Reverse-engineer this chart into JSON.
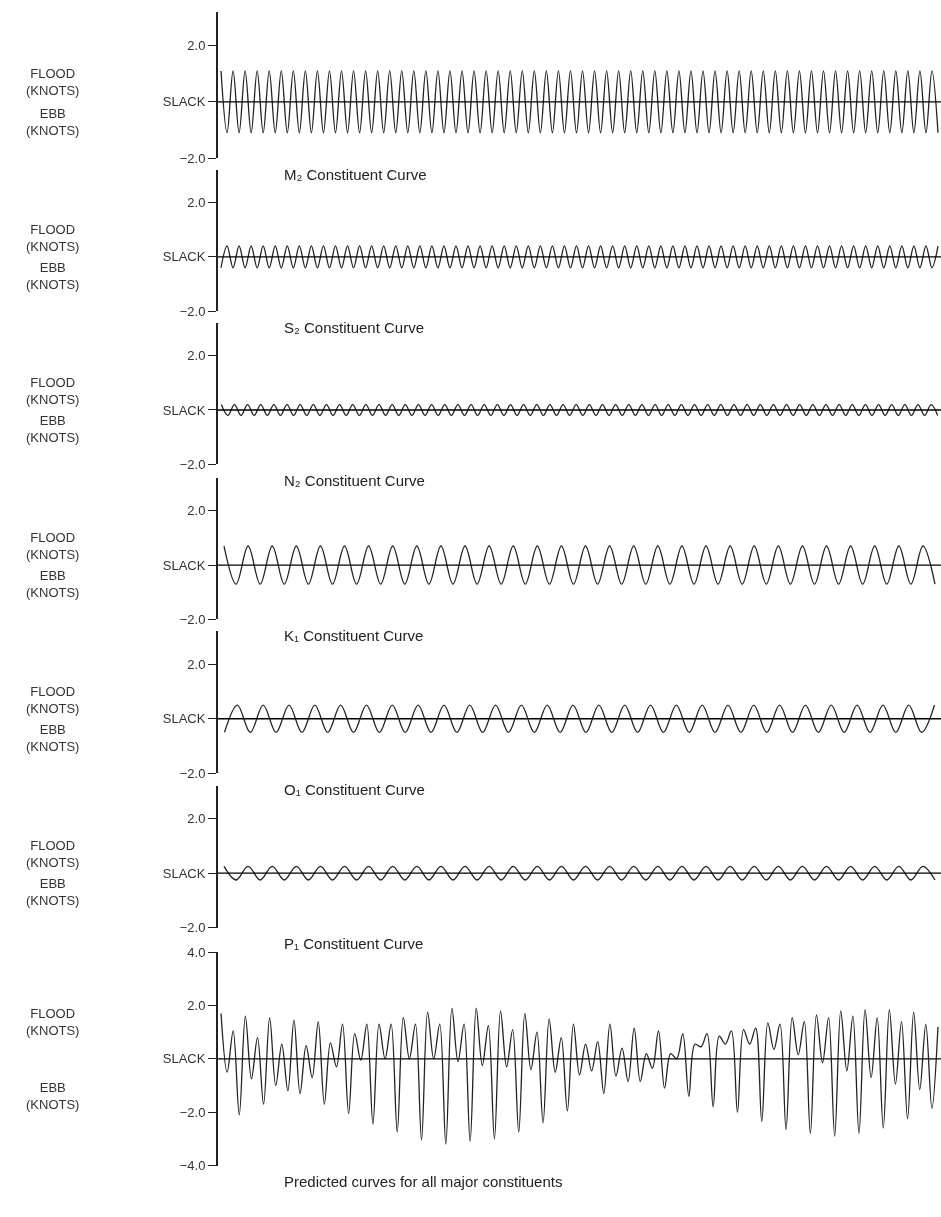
{
  "chart_data": [
    {
      "type": "line",
      "title": "M₂ Constituent Curve",
      "annotations": [
        "FLOOD (KNOTS)",
        "EBB (KNOTS)"
      ],
      "ylim": [
        -2.0,
        3.2
      ],
      "yticks": [
        {
          "value": 2.0,
          "label": "2.0"
        },
        {
          "value": 0,
          "label": "SLACK"
        },
        {
          "value": -2.0,
          "label": "−2.0"
        }
      ],
      "ref_lines": [
        {
          "axis": "y",
          "value": 0,
          "color": "#000000"
        }
      ],
      "categories": [
        null,
        null,
        null,
        null,
        null,
        null,
        null,
        null,
        null,
        null,
        null,
        null,
        null,
        null,
        null,
        null,
        null,
        null,
        null,
        null,
        null,
        null,
        null,
        null,
        null,
        null,
        null,
        null,
        null,
        null,
        null,
        null,
        null,
        null,
        null,
        null,
        null,
        null,
        null,
        null,
        null,
        null,
        null,
        null,
        null,
        null,
        null,
        null,
        null,
        null,
        null,
        null,
        null,
        null,
        null,
        null,
        null,
        null,
        null,
        null,
        null,
        null,
        null,
        null,
        null,
        null,
        null,
        null,
        null,
        null,
        null,
        null,
        null,
        null,
        null,
        null,
        null,
        null,
        null,
        null,
        null,
        null,
        null,
        null,
        null,
        null,
        null,
        null,
        null,
        null,
        null,
        null,
        null,
        null,
        null,
        null,
        null,
        null,
        null,
        null,
        null,
        null,
        null,
        null,
        null,
        null,
        null,
        null,
        null,
        null,
        null,
        null,
        null,
        null,
        null,
        null,
        null,
        null,
        null,
        null
      ],
      "series": [
        {
          "color": "#222222",
          "values": [
            1.1,
            -1.1,
            1.1,
            -1.1,
            1.1,
            -1.1,
            1.1,
            -1.1,
            1.1,
            -1.1,
            1.1,
            -1.1,
            1.1,
            -1.1,
            1.1,
            -1.1,
            1.1,
            -1.1,
            1.1,
            -1.1,
            1.1,
            -1.1,
            1.1,
            -1.1,
            1.1,
            -1.1,
            1.1,
            -1.1,
            1.1,
            -1.1,
            1.1,
            -1.1,
            1.1,
            -1.1,
            1.1,
            -1.1,
            1.1,
            -1.1,
            1.1,
            -1.1,
            1.1,
            -1.1,
            1.1,
            -1.1,
            1.1,
            -1.1,
            1.1,
            -1.1,
            1.1,
            -1.1,
            1.1,
            -1.1,
            1.1,
            -1.1,
            1.1,
            -1.1,
            1.1,
            -1.1,
            1.1,
            -1.1,
            1.1,
            -1.1,
            1.1,
            -1.1,
            1.1,
            -1.1,
            1.1,
            -1.1,
            1.1,
            -1.1,
            1.1,
            -1.1,
            1.1,
            -1.1,
            1.1,
            -1.1,
            1.1,
            -1.1,
            1.1,
            -1.1,
            1.1,
            -1.1,
            1.1,
            -1.1,
            1.1,
            -1.1,
            1.1,
            -1.1,
            1.1,
            -1.1,
            1.1,
            -1.1,
            1.1,
            -1.1,
            1.1,
            -1.1,
            1.1,
            -1.1,
            1.1,
            -1.1,
            1.1,
            -1.1,
            1.1,
            -1.1,
            1.1,
            -1.1,
            1.1,
            -1.1,
            1.1,
            -1.1,
            1.1,
            -1.1,
            1.1,
            -1.1,
            1.1,
            -1.1,
            1.1,
            -1.1,
            1.1,
            -1.1
          ]
        }
      ]
    },
    {
      "type": "line",
      "title": "S₂ Constituent Curve",
      "annotations": [
        "FLOOD (KNOTS)",
        "EBB (KNOTS)"
      ],
      "ylim": [
        -2.0,
        3.2
      ],
      "yticks": [
        {
          "value": 2.0,
          "label": "2.0"
        },
        {
          "value": 0,
          "label": "SLACK"
        },
        {
          "value": -2.0,
          "label": "−2.0"
        }
      ],
      "ref_lines": [
        {
          "axis": "y",
          "value": 0,
          "color": "#000000"
        }
      ],
      "categories": [
        null,
        null,
        null,
        null,
        null,
        null,
        null,
        null,
        null,
        null,
        null,
        null,
        null,
        null,
        null,
        null,
        null,
        null,
        null,
        null,
        null,
        null,
        null,
        null,
        null,
        null,
        null,
        null,
        null,
        null,
        null,
        null,
        null,
        null,
        null,
        null,
        null,
        null,
        null,
        null,
        null,
        null,
        null,
        null,
        null,
        null,
        null,
        null,
        null,
        null,
        null,
        null,
        null,
        null,
        null,
        null,
        null,
        null,
        null,
        null,
        null,
        null,
        null,
        null,
        null,
        null,
        null,
        null,
        null,
        null,
        null,
        null,
        null,
        null,
        null,
        null,
        null,
        null,
        null,
        null,
        null,
        null,
        null,
        null,
        null,
        null,
        null,
        null,
        null,
        null,
        null,
        null,
        null,
        null,
        null,
        null,
        null,
        null,
        null,
        null,
        null,
        null,
        null,
        null,
        null,
        null,
        null,
        null,
        null,
        null,
        null,
        null,
        null,
        null,
        null,
        null,
        null,
        null,
        null,
        null
      ],
      "series": [
        {
          "color": "#222222",
          "values": [
            -0.4,
            0.4,
            -0.4,
            0.4,
            -0.4,
            0.4,
            -0.4,
            0.4,
            -0.4,
            0.4,
            -0.4,
            0.4,
            -0.4,
            0.4,
            -0.4,
            0.4,
            -0.4,
            0.4,
            -0.4,
            0.4,
            -0.4,
            0.4,
            -0.4,
            0.4,
            -0.4,
            0.4,
            -0.4,
            0.4,
            -0.4,
            0.4,
            -0.4,
            0.4,
            -0.4,
            0.4,
            -0.4,
            0.4,
            -0.4,
            0.4,
            -0.4,
            0.4,
            -0.4,
            0.4,
            -0.4,
            0.4,
            -0.4,
            0.4,
            -0.4,
            0.4,
            -0.4,
            0.4,
            -0.4,
            0.4,
            -0.4,
            0.4,
            -0.4,
            0.4,
            -0.4,
            0.4,
            -0.4,
            0.4,
            -0.4,
            0.4,
            -0.4,
            0.4,
            -0.4,
            0.4,
            -0.4,
            0.4,
            -0.4,
            0.4,
            -0.4,
            0.4,
            -0.4,
            0.4,
            -0.4,
            0.4,
            -0.4,
            0.4,
            -0.4,
            0.4,
            -0.4,
            0.4,
            -0.4,
            0.4,
            -0.4,
            0.4,
            -0.4,
            0.4,
            -0.4,
            0.4,
            -0.4,
            0.4,
            -0.4,
            0.4,
            -0.4,
            0.4,
            -0.4,
            0.4,
            -0.4,
            0.4,
            -0.4,
            0.4,
            -0.4,
            0.4,
            -0.4,
            0.4,
            -0.4,
            0.4,
            -0.4,
            0.4,
            -0.4,
            0.4,
            -0.4,
            0.4,
            -0.4,
            0.4,
            -0.4,
            0.4,
            -0.4,
            0.4
          ]
        }
      ]
    },
    {
      "type": "line",
      "title": "N₂ Constituent Curve",
      "annotations": [
        "FLOOD (KNOTS)",
        "EBB (KNOTS)"
      ],
      "ylim": [
        -2.0,
        3.2
      ],
      "yticks": [
        {
          "value": 2.0,
          "label": "2.0"
        },
        {
          "value": 0,
          "label": "SLACK"
        },
        {
          "value": -2.0,
          "label": "−2.0"
        }
      ],
      "ref_lines": [
        {
          "axis": "y",
          "value": 0,
          "color": "#000000"
        }
      ],
      "categories": [
        null,
        null,
        null,
        null,
        null,
        null,
        null,
        null,
        null,
        null,
        null,
        null,
        null,
        null,
        null,
        null,
        null,
        null,
        null,
        null,
        null,
        null,
        null,
        null,
        null,
        null,
        null,
        null,
        null,
        null,
        null,
        null,
        null,
        null,
        null,
        null,
        null,
        null,
        null,
        null,
        null,
        null,
        null,
        null,
        null,
        null,
        null,
        null,
        null,
        null,
        null,
        null,
        null,
        null,
        null,
        null,
        null,
        null,
        null,
        null,
        null,
        null,
        null,
        null,
        null,
        null,
        null,
        null,
        null,
        null,
        null,
        null,
        null,
        null,
        null,
        null,
        null,
        null,
        null,
        null,
        null,
        null,
        null,
        null,
        null,
        null,
        null,
        null,
        null,
        null,
        null,
        null,
        null,
        null,
        null,
        null,
        null,
        null,
        null,
        null,
        null,
        null,
        null,
        null,
        null,
        null,
        null,
        null,
        null,
        null
      ],
      "series": [
        {
          "color": "#222222",
          "values": [
            0.2,
            -0.2,
            0.2,
            -0.2,
            0.2,
            -0.2,
            0.2,
            -0.2,
            0.2,
            -0.2,
            0.2,
            -0.2,
            0.2,
            -0.2,
            0.2,
            -0.2,
            0.2,
            -0.2,
            0.2,
            -0.2,
            0.2,
            -0.2,
            0.2,
            -0.2,
            0.2,
            -0.2,
            0.2,
            -0.2,
            0.2,
            -0.2,
            0.2,
            -0.2,
            0.2,
            -0.2,
            0.2,
            -0.2,
            0.2,
            -0.2,
            0.2,
            -0.2,
            0.2,
            -0.2,
            0.2,
            -0.2,
            0.2,
            -0.2,
            0.2,
            -0.2,
            0.2,
            -0.2,
            0.2,
            -0.2,
            0.2,
            -0.2,
            0.2,
            -0.2,
            0.2,
            -0.2,
            0.2,
            -0.2,
            0.2,
            -0.2,
            0.2,
            -0.2,
            0.2,
            -0.2,
            0.2,
            -0.2,
            0.2,
            -0.2,
            0.2,
            -0.2,
            0.2,
            -0.2,
            0.2,
            -0.2,
            0.2,
            -0.2,
            0.2,
            -0.2,
            0.2,
            -0.2,
            0.2,
            -0.2,
            0.2,
            -0.2,
            0.2,
            -0.2,
            0.2,
            -0.2,
            0.2,
            -0.2,
            0.2,
            -0.2,
            0.2,
            -0.2,
            0.2,
            -0.2,
            0.2,
            -0.2,
            0.2,
            -0.2,
            0.2,
            -0.2,
            0.2,
            -0.2,
            0.2,
            -0.2,
            0.2,
            -0.2
          ]
        }
      ]
    },
    {
      "type": "line",
      "title": "K₁ Constituent Curve",
      "annotations": [
        "FLOOD (KNOTS)",
        "EBB (KNOTS)"
      ],
      "ylim": [
        -2.0,
        3.2
      ],
      "yticks": [
        {
          "value": 2.0,
          "label": "2.0"
        },
        {
          "value": 0,
          "label": "SLACK"
        },
        {
          "value": -2.0,
          "label": "−2.0"
        }
      ],
      "ref_lines": [
        {
          "axis": "y",
          "value": 0,
          "color": "#000000"
        }
      ],
      "categories": [
        null,
        null,
        null,
        null,
        null,
        null,
        null,
        null,
        null,
        null,
        null,
        null,
        null,
        null,
        null,
        null,
        null,
        null,
        null,
        null,
        null,
        null,
        null,
        null,
        null,
        null,
        null,
        null,
        null,
        null,
        null,
        null,
        null,
        null,
        null,
        null,
        null,
        null,
        null,
        null,
        null,
        null,
        null,
        null,
        null,
        null,
        null,
        null,
        null,
        null,
        null,
        null,
        null,
        null,
        null,
        null,
        null,
        null,
        null,
        null
      ],
      "series": [
        {
          "color": "#222222",
          "values": [
            0.7,
            -0.7,
            0.7,
            -0.7,
            0.7,
            -0.7,
            0.7,
            -0.7,
            0.7,
            -0.7,
            0.7,
            -0.7,
            0.7,
            -0.7,
            0.7,
            -0.7,
            0.7,
            -0.7,
            0.7,
            -0.7,
            0.7,
            -0.7,
            0.7,
            -0.7,
            0.7,
            -0.7,
            0.7,
            -0.7,
            0.7,
            -0.7,
            0.7,
            -0.7,
            0.7,
            -0.7,
            0.7,
            -0.7,
            0.7,
            -0.7,
            0.7,
            -0.7,
            0.7,
            -0.7,
            0.7,
            -0.7,
            0.7,
            -0.7,
            0.7,
            -0.7,
            0.7,
            -0.7,
            0.7,
            -0.7,
            0.7,
            -0.7,
            0.7,
            -0.7,
            0.7,
            -0.7,
            0.7,
            -0.7
          ]
        }
      ]
    },
    {
      "type": "line",
      "title": "O₁ Constituent Curve",
      "annotations": [
        "FLOOD (KNOTS)",
        "EBB (KNOTS)"
      ],
      "ylim": [
        -2.0,
        3.2
      ],
      "yticks": [
        {
          "value": 2.0,
          "label": "2.0"
        },
        {
          "value": 0,
          "label": "SLACK"
        },
        {
          "value": -2.0,
          "label": "−2.0"
        }
      ],
      "ref_lines": [
        {
          "axis": "y",
          "value": 0,
          "color": "#000000"
        }
      ],
      "categories": [
        null,
        null,
        null,
        null,
        null,
        null,
        null,
        null,
        null,
        null,
        null,
        null,
        null,
        null,
        null,
        null,
        null,
        null,
        null,
        null,
        null,
        null,
        null,
        null,
        null,
        null,
        null,
        null,
        null,
        null,
        null,
        null,
        null,
        null,
        null,
        null,
        null,
        null,
        null,
        null,
        null,
        null,
        null,
        null,
        null,
        null,
        null,
        null,
        null,
        null,
        null,
        null,
        null,
        null,
        null,
        null
      ],
      "series": [
        {
          "color": "#222222",
          "values": [
            -0.5,
            0.5,
            -0.5,
            0.5,
            -0.5,
            0.5,
            -0.5,
            0.5,
            -0.5,
            0.5,
            -0.5,
            0.5,
            -0.5,
            0.5,
            -0.5,
            0.5,
            -0.5,
            0.5,
            -0.5,
            0.5,
            -0.5,
            0.5,
            -0.5,
            0.5,
            -0.5,
            0.5,
            -0.5,
            0.5,
            -0.5,
            0.5,
            -0.5,
            0.5,
            -0.5,
            0.5,
            -0.5,
            0.5,
            -0.5,
            0.5,
            -0.5,
            0.5,
            -0.5,
            0.5,
            -0.5,
            0.5,
            -0.5,
            0.5,
            -0.5,
            0.5,
            -0.5,
            0.5,
            -0.5,
            0.5,
            -0.5,
            0.5,
            -0.5,
            0.5
          ]
        }
      ]
    },
    {
      "type": "line",
      "title": "P₁ Constituent Curve",
      "annotations": [
        "FLOOD (KNOTS)",
        "EBB (KNOTS)"
      ],
      "ylim": [
        -2.0,
        3.2
      ],
      "yticks": [
        {
          "value": 2.0,
          "label": "2.0"
        },
        {
          "value": 0,
          "label": "SLACK"
        },
        {
          "value": -2.0,
          "label": "−2.0"
        }
      ],
      "ref_lines": [
        {
          "axis": "y",
          "value": 0,
          "color": "#000000"
        }
      ],
      "categories": [
        null,
        null,
        null,
        null,
        null,
        null,
        null,
        null,
        null,
        null,
        null,
        null,
        null,
        null,
        null,
        null,
        null,
        null,
        null,
        null,
        null,
        null,
        null,
        null,
        null,
        null,
        null,
        null,
        null,
        null,
        null,
        null,
        null,
        null,
        null,
        null,
        null,
        null,
        null,
        null,
        null,
        null,
        null,
        null,
        null,
        null,
        null,
        null,
        null,
        null,
        null,
        null,
        null,
        null,
        null,
        null,
        null,
        null,
        null,
        null
      ],
      "series": [
        {
          "color": "#222222",
          "values": [
            0.25,
            -0.25,
            0.25,
            -0.25,
            0.25,
            -0.25,
            0.25,
            -0.25,
            0.25,
            -0.25,
            0.25,
            -0.25,
            0.25,
            -0.25,
            0.25,
            -0.25,
            0.25,
            -0.25,
            0.25,
            -0.25,
            0.25,
            -0.25,
            0.25,
            -0.25,
            0.25,
            -0.25,
            0.25,
            -0.25,
            0.25,
            -0.25,
            0.25,
            -0.25,
            0.25,
            -0.25,
            0.25,
            -0.25,
            0.25,
            -0.25,
            0.25,
            -0.25,
            0.25,
            -0.25,
            0.25,
            -0.25,
            0.25,
            -0.25,
            0.25,
            -0.25,
            0.25,
            -0.25,
            0.25,
            -0.25,
            0.25,
            -0.25,
            0.25,
            -0.25,
            0.25,
            -0.25,
            0.25,
            -0.25
          ]
        }
      ]
    },
    {
      "type": "line",
      "title": "Predicted curves for all major constituents",
      "annotations": [
        "FLOOD (KNOTS)",
        "EBB (KNOTS)"
      ],
      "ylim": [
        -4.0,
        4.0
      ],
      "yticks": [
        {
          "value": 4.0,
          "label": "4.0"
        },
        {
          "value": 2.0,
          "label": "2.0"
        },
        {
          "value": 0,
          "label": "SLACK"
        },
        {
          "value": -2.0,
          "label": "−2.0"
        },
        {
          "value": -4.0,
          "label": "−4.0"
        }
      ],
      "ref_lines": [
        {
          "axis": "y",
          "value": 0,
          "color": "#000000"
        }
      ],
      "categories": [
        null,
        null,
        null,
        null,
        null,
        null,
        null,
        null,
        null,
        null,
        null,
        null,
        null,
        null,
        null,
        null,
        null,
        null,
        null,
        null,
        null,
        null,
        null,
        null,
        null,
        null,
        null,
        null,
        null,
        null,
        null,
        null,
        null,
        null,
        null,
        null,
        null,
        null,
        null,
        null,
        null,
        null,
        null,
        null,
        null,
        null,
        null,
        null,
        null,
        null,
        null,
        null,
        null,
        null,
        null,
        null,
        null,
        null,
        null,
        null,
        null,
        null,
        null,
        null,
        null,
        null,
        null,
        null,
        null,
        null,
        null,
        null,
        null,
        null,
        null,
        null,
        null,
        null,
        null,
        null,
        null,
        null,
        null,
        null,
        null,
        null,
        null,
        null,
        null,
        null,
        null,
        null,
        null,
        null,
        null,
        null,
        null,
        null,
        null,
        null,
        null,
        null,
        null,
        null,
        null,
        null,
        null,
        null,
        null,
        null,
        null,
        null,
        null,
        null,
        null,
        null,
        null,
        null,
        null
      ],
      "series": [
        {
          "color": "#222222",
          "values": [
            1.7,
            -0.5,
            1.05,
            -2.1,
            1.6,
            -0.75,
            0.8,
            -1.7,
            1.55,
            -1.0,
            0.55,
            -1.2,
            1.45,
            -1.3,
            0.5,
            -0.7,
            1.4,
            -1.7,
            0.6,
            -0.3,
            1.3,
            -2.05,
            0.95,
            -0.05,
            1.3,
            -2.45,
            1.3,
            0.0,
            1.3,
            -2.75,
            1.55,
            0.0,
            1.3,
            -3.05,
            1.75,
            0.0,
            1.3,
            -3.2,
            1.9,
            -0.1,
            1.3,
            -3.1,
            1.9,
            -0.25,
            1.25,
            -3.0,
            1.8,
            -0.3,
            1.1,
            -2.75,
            1.7,
            -0.4,
            1.0,
            -2.4,
            1.5,
            -0.5,
            0.8,
            -1.95,
            1.3,
            -0.6,
            0.55,
            -0.45,
            0.65,
            -1.3,
            1.3,
            -0.65,
            0.4,
            -0.85,
            1.15,
            -0.85,
            0.2,
            -0.35,
            1.05,
            -1.1,
            0.2,
            0.0,
            0.95,
            -1.4,
            0.55,
            0.45,
            0.95,
            -1.8,
            0.85,
            0.55,
            1.05,
            -2.0,
            1.1,
            0.55,
            1.15,
            -2.35,
            1.35,
            0.35,
            1.3,
            -2.65,
            1.55,
            0.15,
            1.4,
            -2.8,
            1.65,
            -0.15,
            1.55,
            -2.9,
            1.8,
            -0.45,
            1.6,
            -2.8,
            1.85,
            -0.7,
            1.55,
            -2.6,
            1.85,
            -0.95,
            1.4,
            -2.25,
            1.75,
            -1.15,
            1.3,
            -1.85,
            1.2
          ]
        }
      ]
    }
  ]
}
